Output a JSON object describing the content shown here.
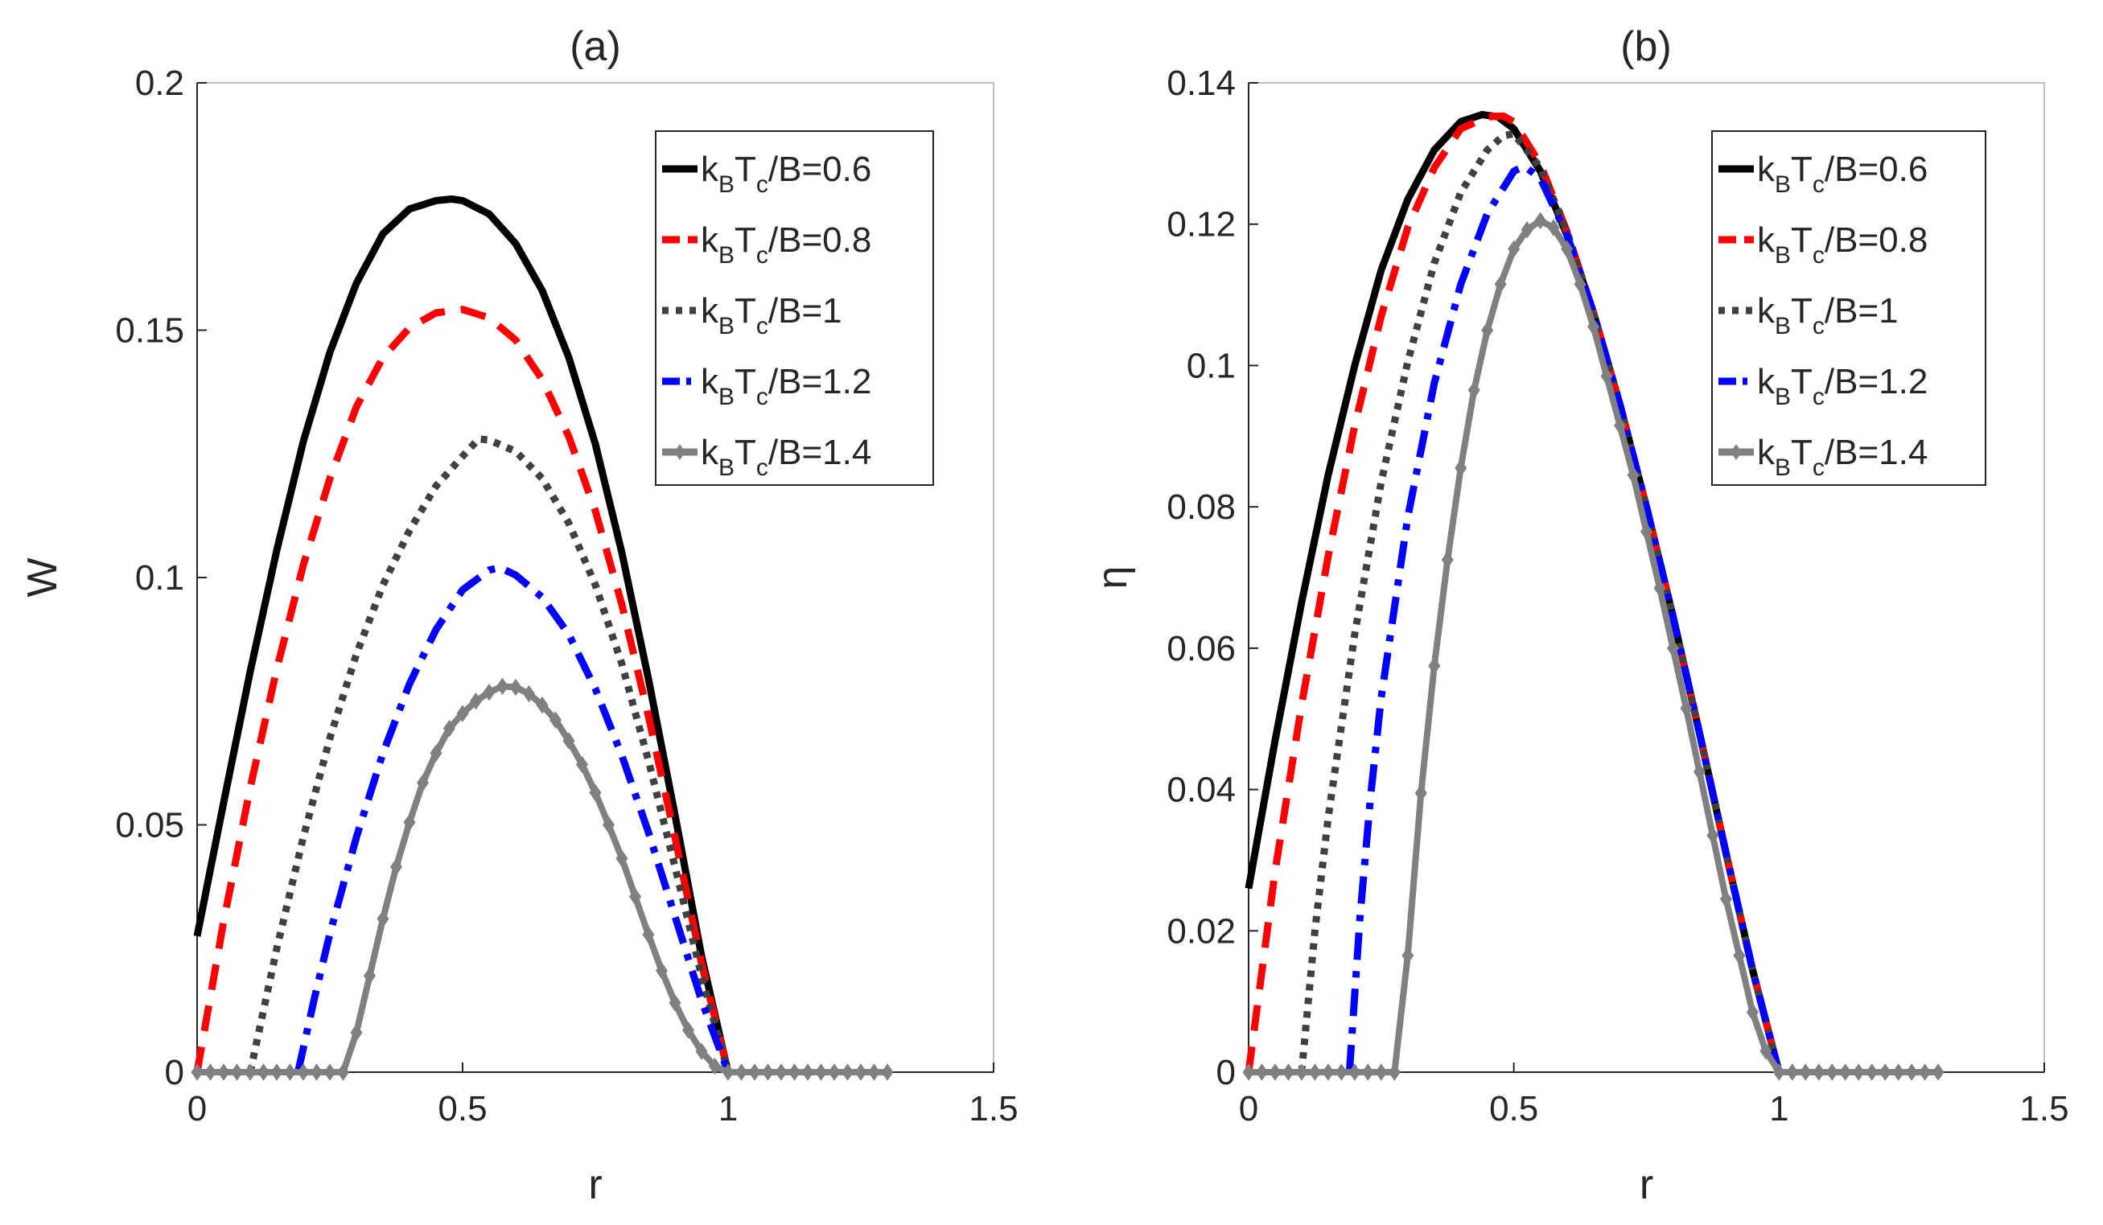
{
  "chart_data": [
    {
      "type": "line",
      "title": "(a)",
      "xlabel": "r",
      "ylabel": "W",
      "xlim": [
        0,
        1.5
      ],
      "ylim": [
        0,
        0.2
      ],
      "xticks": [
        0,
        0.5,
        1,
        1.5
      ],
      "xtick_labels": [
        "0",
        "0.5",
        "1",
        "1.5"
      ],
      "yticks": [
        0,
        0.05,
        0.1,
        0.15,
        0.2
      ],
      "ytick_labels": [
        "0",
        "0.05",
        "0.1",
        "0.15",
        "0.2"
      ],
      "legend_position": "top-right",
      "series": [
        {
          "name": "kBTc/B=0.6",
          "label_main": "k",
          "label_sub1": "B",
          "label_mid": "T",
          "label_sub2": "c",
          "label_tail": "/B=0.6",
          "color": "#000000",
          "style": "solid",
          "x": [
            0,
            0.05,
            0.1,
            0.15,
            0.2,
            0.25,
            0.3,
            0.35,
            0.4,
            0.45,
            0.48,
            0.5,
            0.55,
            0.6,
            0.65,
            0.7,
            0.75,
            0.8,
            0.85,
            0.9,
            0.95,
            1.0
          ],
          "y": [
            0.0275,
            0.0545,
            0.081,
            0.1055,
            0.1275,
            0.1455,
            0.1595,
            0.1695,
            0.1745,
            0.1762,
            0.1765,
            0.1762,
            0.1735,
            0.1675,
            0.158,
            0.1445,
            0.127,
            0.105,
            0.0795,
            0.052,
            0.0235,
            0.0
          ]
        },
        {
          "name": "kBTc/B=0.8",
          "label_main": "k",
          "label_sub1": "B",
          "label_mid": "T",
          "label_sub2": "c",
          "label_tail": "/B=0.8",
          "color": "#ff0000",
          "style": "dashed",
          "x": [
            0,
            0.05,
            0.1,
            0.15,
            0.2,
            0.25,
            0.3,
            0.35,
            0.4,
            0.45,
            0.5,
            0.55,
            0.6,
            0.65,
            0.7,
            0.75,
            0.8,
            0.85,
            0.9,
            0.95,
            1.0
          ],
          "y": [
            0.0,
            0.0305,
            0.0575,
            0.0815,
            0.1025,
            0.12,
            0.1345,
            0.1445,
            0.1505,
            0.1535,
            0.1542,
            0.1525,
            0.148,
            0.14,
            0.1285,
            0.1135,
            0.0945,
            0.072,
            0.0475,
            0.022,
            0.0
          ]
        },
        {
          "name": "kBTc/B=1",
          "label_main": "k",
          "label_sub1": "B",
          "label_mid": "T",
          "label_sub2": "c",
          "label_tail": "/B=1",
          "color": "#404040",
          "style": "dotted",
          "x": [
            0.1,
            0.15,
            0.2,
            0.25,
            0.3,
            0.35,
            0.4,
            0.45,
            0.5,
            0.53,
            0.55,
            0.6,
            0.65,
            0.7,
            0.75,
            0.8,
            0.85,
            0.9,
            0.95,
            1.0
          ],
          "y": [
            0.0,
            0.025,
            0.0475,
            0.0675,
            0.0845,
            0.0985,
            0.1095,
            0.1185,
            0.1245,
            0.128,
            0.1278,
            0.1255,
            0.12,
            0.111,
            0.0985,
            0.0825,
            0.063,
            0.0415,
            0.0195,
            0.0
          ]
        },
        {
          "name": "kBTc/B=1.2",
          "label_main": "k",
          "label_sub1": "B",
          "label_mid": "T",
          "label_sub2": "c",
          "label_tail": "/B=1.2",
          "color": "#0000ff",
          "style": "dashdot",
          "x": [
            0.19,
            0.22,
            0.25,
            0.3,
            0.35,
            0.4,
            0.45,
            0.5,
            0.55,
            0.57,
            0.6,
            0.65,
            0.7,
            0.75,
            0.8,
            0.85,
            0.9,
            0.95,
            1.0
          ],
          "y": [
            0.0,
            0.0145,
            0.028,
            0.0475,
            0.0645,
            0.0785,
            0.0895,
            0.0975,
            0.1015,
            0.102,
            0.1005,
            0.096,
            0.0885,
            0.0775,
            0.064,
            0.0485,
            0.0315,
            0.0145,
            0.0
          ]
        },
        {
          "name": "kBTc/B=1.4",
          "label_main": "k",
          "label_sub1": "B",
          "label_mid": "T",
          "label_sub2": "c",
          "label_tail": "/B=1.4",
          "color": "#808080",
          "style": "solid-diamond",
          "x": [
            0,
            0.025,
            0.05,
            0.075,
            0.1,
            0.125,
            0.15,
            0.175,
            0.2,
            0.225,
            0.25,
            0.275,
            0.3,
            0.325,
            0.35,
            0.375,
            0.4,
            0.425,
            0.45,
            0.475,
            0.5,
            0.525,
            0.55,
            0.575,
            0.6,
            0.625,
            0.65,
            0.675,
            0.7,
            0.725,
            0.75,
            0.775,
            0.8,
            0.825,
            0.85,
            0.875,
            0.9,
            0.925,
            0.95,
            0.975,
            1.0,
            1.025,
            1.05,
            1.075,
            1.1,
            1.125,
            1.15,
            1.175,
            1.2,
            1.225,
            1.25,
            1.275,
            1.3
          ],
          "y": [
            0,
            0,
            0,
            0,
            0,
            0,
            0,
            0,
            0,
            0,
            0,
            0,
            0.008,
            0.0195,
            0.031,
            0.0415,
            0.0505,
            0.0585,
            0.0645,
            0.0695,
            0.0725,
            0.075,
            0.0768,
            0.078,
            0.0778,
            0.0765,
            0.0742,
            0.0712,
            0.067,
            0.0622,
            0.0565,
            0.05,
            0.0432,
            0.0355,
            0.0278,
            0.0205,
            0.014,
            0.0085,
            0.0042,
            0.0012,
            0.0,
            0,
            0,
            0,
            0,
            0,
            0,
            0,
            0,
            0,
            0,
            0,
            0
          ]
        }
      ]
    },
    {
      "type": "line",
      "title": "(b)",
      "xlabel": "r",
      "ylabel": "η",
      "xlim": [
        0,
        1.5
      ],
      "ylim": [
        0,
        0.14
      ],
      "xticks": [
        0,
        0.5,
        1,
        1.5
      ],
      "xtick_labels": [
        "0",
        "0.5",
        "1",
        "1.5"
      ],
      "yticks": [
        0,
        0.02,
        0.04,
        0.06,
        0.08,
        0.1,
        0.12,
        0.14
      ],
      "ytick_labels": [
        "0",
        "0.02",
        "0.04",
        "0.06",
        "0.08",
        "0.1",
        "0.12",
        "0.14"
      ],
      "legend_position": "top-right",
      "series": [
        {
          "name": "kBTc/B=0.6",
          "label_main": "k",
          "label_sub1": "B",
          "label_mid": "T",
          "label_sub2": "c",
          "label_tail": "/B=0.6",
          "color": "#000000",
          "style": "solid",
          "x": [
            0,
            0.05,
            0.1,
            0.15,
            0.2,
            0.25,
            0.3,
            0.35,
            0.4,
            0.44,
            0.47,
            0.5,
            0.55,
            0.6,
            0.65,
            0.7,
            0.75,
            0.8,
            0.85,
            0.9,
            0.95,
            1.0
          ],
          "y": [
            0.026,
            0.047,
            0.0665,
            0.0845,
            0.1,
            0.1135,
            0.1235,
            0.1305,
            0.1345,
            0.1355,
            0.1352,
            0.1335,
            0.1275,
            0.1185,
            0.1075,
            0.0945,
            0.08,
            0.0645,
            0.048,
            0.031,
            0.0145,
            0.0
          ]
        },
        {
          "name": "kBTc/B=0.8",
          "label_main": "k",
          "label_sub1": "B",
          "label_mid": "T",
          "label_sub2": "c",
          "label_tail": "/B=0.8",
          "color": "#ff0000",
          "style": "dashed",
          "x": [
            0,
            0.05,
            0.1,
            0.15,
            0.2,
            0.25,
            0.3,
            0.35,
            0.4,
            0.45,
            0.48,
            0.5,
            0.55,
            0.6,
            0.65,
            0.7,
            0.75,
            0.8,
            0.85,
            0.9,
            0.95,
            1.0
          ],
          "y": [
            0.0,
            0.0285,
            0.052,
            0.073,
            0.0915,
            0.107,
            0.1195,
            0.128,
            0.1335,
            0.1352,
            0.1353,
            0.1345,
            0.1285,
            0.119,
            0.1075,
            0.0945,
            0.08,
            0.0645,
            0.048,
            0.031,
            0.0145,
            0.0
          ]
        },
        {
          "name": "kBTc/B=1",
          "label_main": "k",
          "label_sub1": "B",
          "label_mid": "T",
          "label_sub2": "c",
          "label_tail": "/B=1",
          "color": "#404040",
          "style": "dotted",
          "x": [
            0.1,
            0.125,
            0.15,
            0.2,
            0.25,
            0.3,
            0.35,
            0.4,
            0.45,
            0.48,
            0.5,
            0.55,
            0.6,
            0.65,
            0.7,
            0.75,
            0.8,
            0.85,
            0.9,
            0.95,
            1.0
          ],
          "y": [
            0.0,
            0.02,
            0.036,
            0.062,
            0.0835,
            0.1005,
            0.1145,
            0.1245,
            0.1305,
            0.1325,
            0.1328,
            0.128,
            0.119,
            0.1075,
            0.0945,
            0.08,
            0.0645,
            0.048,
            0.031,
            0.0145,
            0.0
          ]
        },
        {
          "name": "kBTc/B=1.2",
          "label_main": "k",
          "label_sub1": "B",
          "label_mid": "T",
          "label_sub2": "c",
          "label_tail": "/B=1.2",
          "color": "#0000ff",
          "style": "dashdot",
          "x": [
            0.19,
            0.21,
            0.23,
            0.25,
            0.3,
            0.35,
            0.4,
            0.45,
            0.5,
            0.52,
            0.55,
            0.6,
            0.65,
            0.7,
            0.75,
            0.8,
            0.85,
            0.9,
            0.95,
            1.0
          ],
          "y": [
            0.0,
            0.022,
            0.039,
            0.053,
            0.0785,
            0.0975,
            0.1115,
            0.1215,
            0.1275,
            0.1282,
            0.1265,
            0.1185,
            0.1075,
            0.0945,
            0.08,
            0.0645,
            0.048,
            0.031,
            0.0145,
            0.0
          ]
        },
        {
          "name": "kBTc/B=1.4",
          "label_main": "k",
          "label_sub1": "B",
          "label_mid": "T",
          "label_sub2": "c",
          "label_tail": "/B=1.4",
          "color": "#808080",
          "style": "solid-diamond",
          "x": [
            0,
            0.025,
            0.05,
            0.075,
            0.1,
            0.125,
            0.15,
            0.175,
            0.2,
            0.225,
            0.25,
            0.275,
            0.3,
            0.325,
            0.35,
            0.375,
            0.4,
            0.425,
            0.45,
            0.475,
            0.5,
            0.525,
            0.55,
            0.575,
            0.6,
            0.625,
            0.65,
            0.675,
            0.7,
            0.725,
            0.75,
            0.775,
            0.8,
            0.825,
            0.85,
            0.875,
            0.9,
            0.925,
            0.95,
            0.975,
            1.0,
            1.025,
            1.05,
            1.075,
            1.1,
            1.125,
            1.15,
            1.175,
            1.2,
            1.225,
            1.25,
            1.275,
            1.3
          ],
          "y": [
            0,
            0,
            0,
            0,
            0,
            0,
            0,
            0,
            0,
            0,
            0,
            0,
            0.0165,
            0.0395,
            0.0575,
            0.0725,
            0.0855,
            0.0965,
            0.105,
            0.1115,
            0.1165,
            0.1192,
            0.1205,
            0.1195,
            0.1165,
            0.1115,
            0.1055,
            0.0985,
            0.0915,
            0.0845,
            0.0765,
            0.0685,
            0.06,
            0.0515,
            0.0425,
            0.0335,
            0.0245,
            0.0165,
            0.0085,
            0.003,
            0.0,
            0,
            0,
            0,
            0,
            0,
            0,
            0,
            0,
            0,
            0,
            0,
            0
          ]
        }
      ]
    }
  ]
}
